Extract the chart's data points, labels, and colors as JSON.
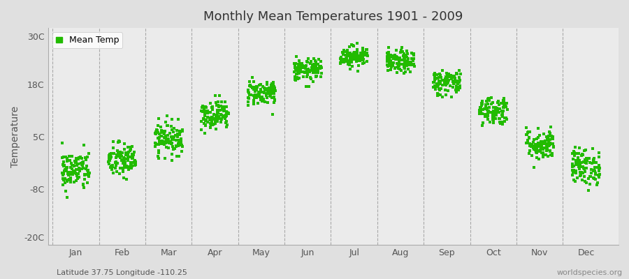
{
  "title": "Monthly Mean Temperatures 1901 - 2009",
  "ylabel": "Temperature",
  "subtitle": "Latitude 37.75 Longitude -110.25",
  "watermark": "worldspecies.org",
  "months": [
    "Jan",
    "Feb",
    "Mar",
    "Apr",
    "May",
    "Jun",
    "Jul",
    "Aug",
    "Sep",
    "Oct",
    "Nov",
    "Dec"
  ],
  "mean_temps": [
    -3.5,
    -1.0,
    4.5,
    10.5,
    16.0,
    21.5,
    25.0,
    23.5,
    18.5,
    11.5,
    3.0,
    -2.5
  ],
  "temp_spreads": [
    2.5,
    2.2,
    2.0,
    1.8,
    1.6,
    1.4,
    1.3,
    1.4,
    1.6,
    1.8,
    2.0,
    2.3
  ],
  "n_years": 109,
  "dot_color": "#22bb00",
  "dot_size": 8,
  "background_color": "#e0e0e0",
  "plot_bg_color": "#ebebeb",
  "yticks": [
    -20,
    -8,
    5,
    18,
    30
  ],
  "ytick_labels": [
    "-20C",
    "-8C",
    "5C",
    "18C",
    "30C"
  ],
  "ylim": [
    -22,
    32
  ],
  "xlim_left": 0.0,
  "xlim_right": 12.5,
  "legend_label": "Mean Temp",
  "grid_color": "#999999",
  "seed": 42
}
